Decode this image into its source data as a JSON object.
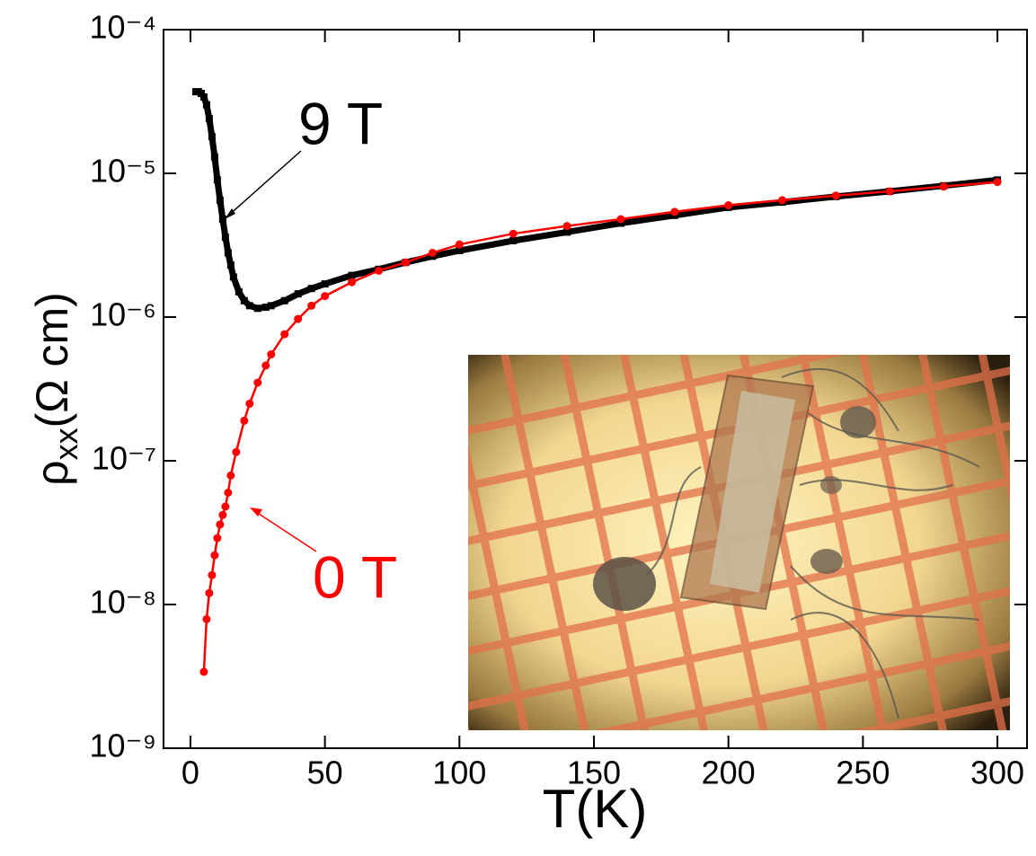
{
  "chart_data": {
    "type": "line",
    "log_y": true,
    "x_label": "T(K)",
    "y_label": {
      "symbol": "ρ",
      "subscript": "xx",
      "unit": "(Ω cm)"
    },
    "xlim": [
      -10,
      311
    ],
    "xticks": [
      0,
      50,
      100,
      150,
      200,
      250,
      300
    ],
    "ylim": [
      1e-09,
      0.0001
    ],
    "yticks": [
      {
        "value": 1e-09,
        "label": "10⁻⁹"
      },
      {
        "value": 1e-08,
        "label": "10⁻⁸"
      },
      {
        "value": 1e-07,
        "label": "10⁻⁷"
      },
      {
        "value": 1e-06,
        "label": "10⁻⁶"
      },
      {
        "value": 1e-05,
        "label": "10⁻⁵"
      },
      {
        "value": 0.0001,
        "label": "10⁻⁴"
      }
    ],
    "series": [
      {
        "name": "9 T",
        "color": "#000000",
        "marker": "square",
        "x": [
          2,
          3,
          4,
          5,
          6,
          7,
          8,
          9,
          10,
          11,
          12,
          13,
          14,
          15,
          16,
          18,
          20,
          22,
          25,
          28,
          30,
          35,
          40,
          45,
          50,
          60,
          70,
          80,
          90,
          100,
          120,
          140,
          160,
          180,
          200,
          220,
          240,
          260,
          280,
          300
        ],
        "values": [
          3.7e-05,
          3.7e-05,
          3.6e-05,
          3.4e-05,
          3e-05,
          2.4e-05,
          1.8e-05,
          1.3e-05,
          9e-06,
          6.5e-06,
          4.8e-06,
          3.6e-06,
          2.8e-06,
          2.3e-06,
          1.9e-06,
          1.5e-06,
          1.3e-06,
          1.2e-06,
          1.15e-06,
          1.17e-06,
          1.2e-06,
          1.3e-06,
          1.45e-06,
          1.58e-06,
          1.7e-06,
          1.95e-06,
          2.15e-06,
          2.4e-06,
          2.65e-06,
          2.9e-06,
          3.4e-06,
          3.9e-06,
          4.5e-06,
          5.1e-06,
          5.8e-06,
          6.3e-06,
          6.9e-06,
          7.5e-06,
          8.2e-06,
          9e-06
        ]
      },
      {
        "name": "0 T",
        "color": "#ff0000",
        "marker": "circle",
        "x": [
          5,
          6,
          7,
          8,
          9,
          10,
          11,
          12,
          13,
          14,
          15,
          17,
          20,
          22,
          25,
          28,
          30,
          35,
          40,
          45,
          50,
          60,
          70,
          80,
          90,
          100,
          120,
          140,
          160,
          180,
          200,
          220,
          240,
          260,
          280,
          300
        ],
        "values": [
          3.4e-09,
          7.9e-09,
          1.2e-08,
          1.6e-08,
          2.2e-08,
          2.9e-08,
          3.6e-08,
          4.2e-08,
          4.8e-08,
          6e-08,
          7.9e-08,
          1.15e-07,
          1.9e-07,
          2.5e-07,
          3.5e-07,
          4.6e-07,
          5.5e-07,
          7.6e-07,
          9.7e-07,
          1.2e-06,
          1.4e-06,
          1.75e-06,
          2.1e-06,
          2.4e-06,
          2.8e-06,
          3.2e-06,
          3.8e-06,
          4.3e-06,
          4.8e-06,
          5.4e-06,
          6e-06,
          6.5e-06,
          7e-06,
          7.5e-06,
          8.1e-06,
          8.7e-06
        ]
      }
    ]
  }
}
